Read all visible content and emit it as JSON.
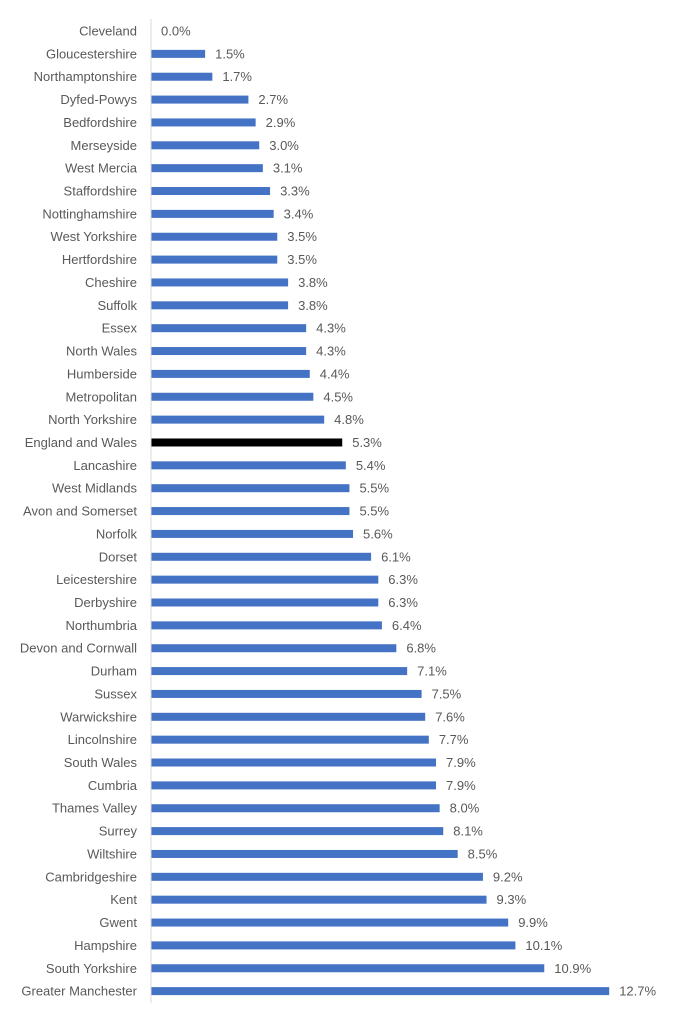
{
  "chart_data": {
    "type": "bar",
    "orientation": "horizontal",
    "title": "",
    "xlabel": "",
    "ylabel": "",
    "xlim": [
      0,
      12.7
    ],
    "grid": false,
    "value_suffix": "%",
    "categories": [
      "Cleveland",
      "Gloucestershire",
      "Northamptonshire",
      "Dyfed-Powys",
      "Bedfordshire",
      "Merseyside",
      "West Mercia",
      "Staffordshire",
      "Nottinghamshire",
      "West Yorkshire",
      "Hertfordshire",
      "Cheshire",
      "Suffolk",
      "Essex",
      "North Wales",
      "Humberside",
      "Metropolitan",
      "North Yorkshire",
      "England and Wales",
      "Lancashire",
      "West Midlands",
      "Avon and Somerset",
      "Norfolk",
      "Dorset",
      "Leicestershire",
      "Derbyshire",
      "Northumbria",
      "Devon and Cornwall",
      "Durham",
      "Sussex",
      "Warwickshire",
      "Lincolnshire",
      "South Wales",
      "Cumbria",
      "Thames Valley",
      "Surrey",
      "Wiltshire",
      "Cambridgeshire",
      "Kent",
      "Gwent",
      "Hampshire",
      "South Yorkshire",
      "Greater Manchester"
    ],
    "values": [
      0.0,
      1.5,
      1.7,
      2.7,
      2.9,
      3.0,
      3.1,
      3.3,
      3.4,
      3.5,
      3.5,
      3.8,
      3.8,
      4.3,
      4.3,
      4.4,
      4.5,
      4.8,
      5.3,
      5.4,
      5.5,
      5.5,
      5.6,
      6.1,
      6.3,
      6.3,
      6.4,
      6.8,
      7.1,
      7.5,
      7.6,
      7.7,
      7.9,
      7.9,
      8.0,
      8.1,
      8.5,
      9.2,
      9.3,
      9.9,
      10.1,
      10.9,
      12.7
    ],
    "highlight_category": "England and Wales",
    "colors": {
      "bar": "#4472c4",
      "highlight": "#000000",
      "axis": "#d9d9d9",
      "text": "#595959"
    }
  }
}
